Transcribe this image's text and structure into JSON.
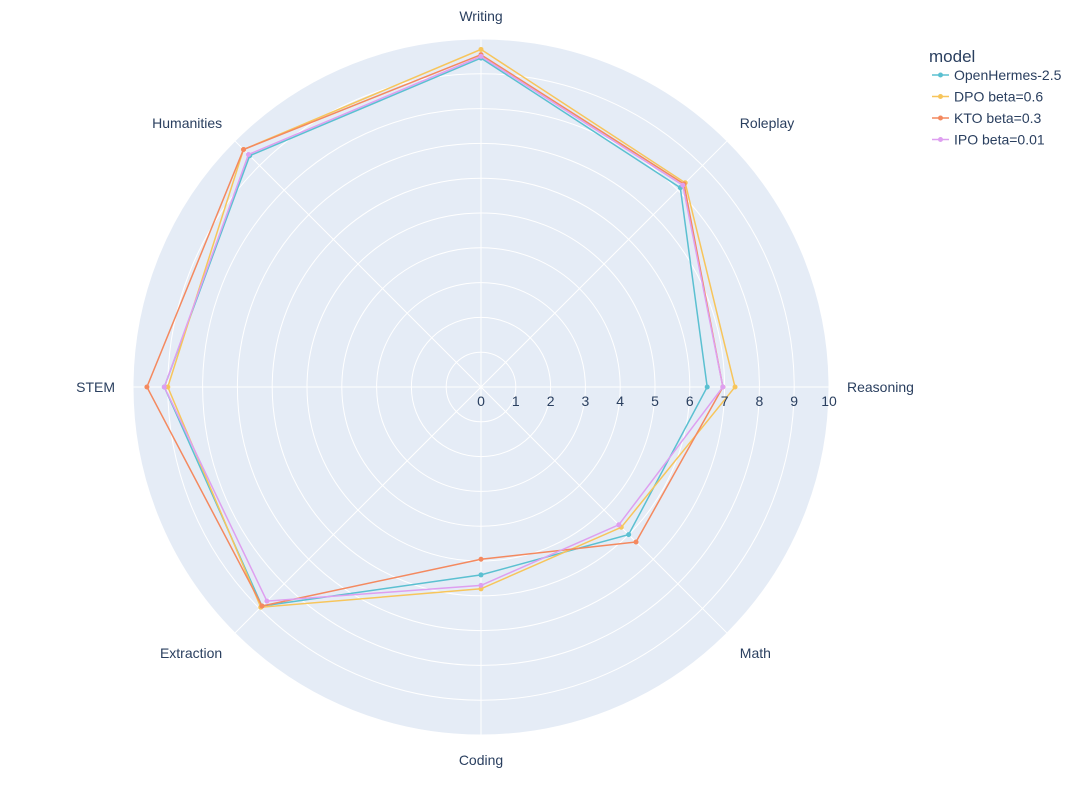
{
  "chart_data": {
    "type": "radar",
    "categories": [
      "Writing",
      "Roleplay",
      "Reasoning",
      "Math",
      "Coding",
      "Extraction",
      "STEM",
      "Humanities"
    ],
    "radial_range": [
      0,
      10
    ],
    "radial_ticks": [
      "0",
      "1",
      "2",
      "3",
      "4",
      "5",
      "6",
      "7",
      "8",
      "9",
      "10"
    ],
    "legend_title": "model",
    "legend_position": "top-right",
    "grid": true,
    "background_color": "#e5ecf6",
    "grid_color": "#ffffff",
    "series": [
      {
        "name": "OpenHermes-2.5",
        "color": "#5bc0d1",
        "values": [
          9.45,
          8.1,
          6.5,
          6.0,
          5.4,
          8.9,
          9.1,
          9.4
        ]
      },
      {
        "name": "DPO beta=0.6",
        "color": "#f7c55b",
        "values": [
          9.7,
          8.3,
          7.3,
          5.7,
          5.8,
          8.95,
          9.0,
          9.65
        ]
      },
      {
        "name": "KTO beta=0.3",
        "color": "#f4895f",
        "values": [
          9.55,
          8.25,
          6.95,
          6.3,
          4.95,
          8.9,
          9.6,
          9.65
        ]
      },
      {
        "name": "IPO beta=0.01",
        "color": "#de9ff0",
        "values": [
          9.5,
          8.2,
          6.95,
          5.6,
          5.7,
          8.7,
          9.1,
          9.45
        ]
      }
    ]
  }
}
